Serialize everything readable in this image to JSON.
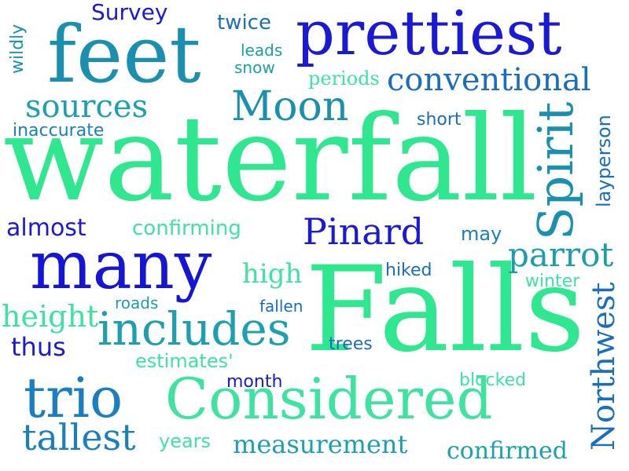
{
  "words": {
    "waterfall": "waterfall",
    "falls": "Falls",
    "feet": "feet",
    "prettiest": "prettiest",
    "many": "many",
    "considered": "Considered",
    "trio": "trio",
    "includes": "includes",
    "spirit": "Spirit",
    "pinard": "Pinard",
    "moon": "Moon",
    "conventional": "conventional",
    "sources": "sources",
    "northwest": "Northwest",
    "tallest": "tallest",
    "measurement": "measurement",
    "parrot": "parrot",
    "confirmed": "confirmed",
    "survey": "Survey",
    "twice": "twice",
    "leads": "leads",
    "snow": "snow",
    "periods": "periods",
    "wildly": "wildly",
    "inaccurate": "inaccurate",
    "short": "short",
    "layperson": "layperson",
    "almost": "almost",
    "confirming": "confirming",
    "may": "may",
    "high": "high",
    "hiked": "hiked",
    "winter": "winter",
    "roads": "roads",
    "fallen": "fallen",
    "height": "height",
    "thus": "thus",
    "trees": "trees",
    "estimates": "estimates'",
    "month": "month",
    "blocked": "blocked",
    "years": "years"
  },
  "palette": {
    "blue": "#1a1ad6",
    "teal": "#1a8fb0",
    "green": "#2ee88f"
  }
}
